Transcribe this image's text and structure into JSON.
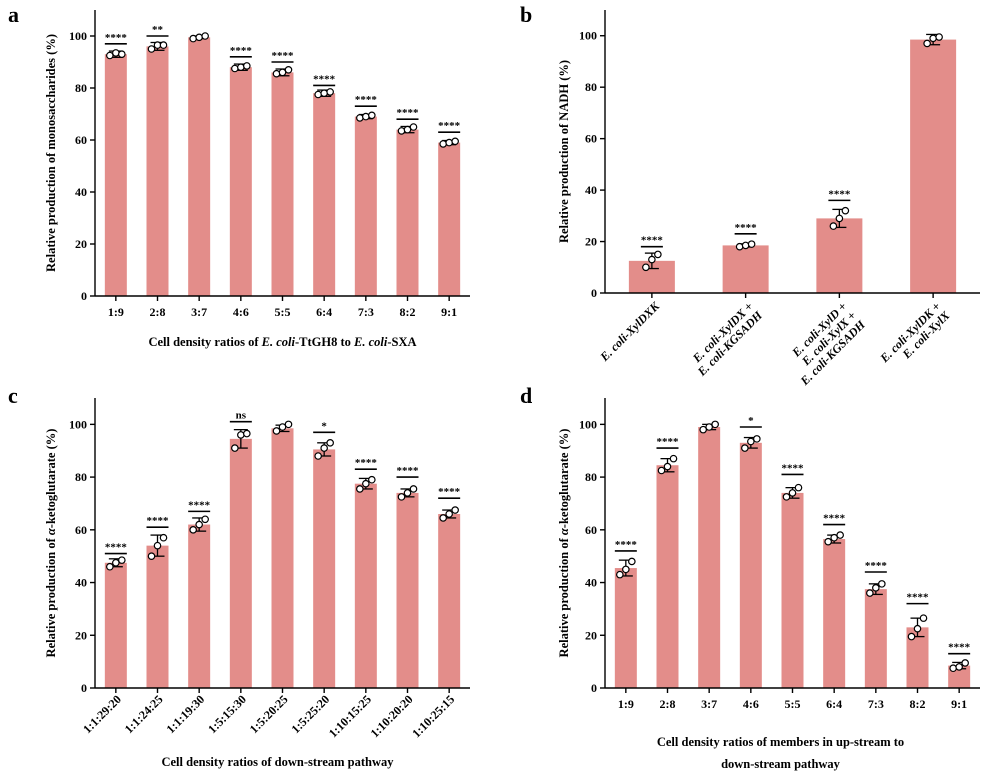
{
  "chart_data": [
    {
      "panel": "a",
      "type": "bar",
      "categories": [
        "1:9",
        "2:8",
        "3:7",
        "4:6",
        "5:5",
        "6:4",
        "7:3",
        "8:2",
        "9:1"
      ],
      "values": [
        93,
        96,
        99.5,
        88,
        86,
        78,
        69,
        64,
        59
      ],
      "errors": [
        1.2,
        1.5,
        0.5,
        1.2,
        1.3,
        1.2,
        0.8,
        1.2,
        0.8
      ],
      "points": [
        [
          92.5,
          93.5,
          93
        ],
        [
          95,
          96.5,
          96.5
        ],
        [
          99,
          99.5,
          100
        ],
        [
          87.5,
          88,
          88.5
        ],
        [
          85.5,
          86,
          87
        ],
        [
          77.5,
          78,
          78.5
        ],
        [
          68.5,
          69,
          69.5
        ],
        [
          63.5,
          64,
          65
        ],
        [
          58.5,
          59,
          59.5
        ]
      ],
      "significance": [
        "****",
        "**",
        "",
        "****",
        "****",
        "****",
        "****",
        "****",
        "****"
      ],
      "sig_levels": [
        97,
        100,
        null,
        92,
        90,
        81,
        73,
        68,
        63
      ],
      "title": "",
      "xlabel_parts": [
        {
          "text": "Cell density ratios of ",
          "italic": false
        },
        {
          "text": "E. coli",
          "italic": true
        },
        {
          "text": "-TtGH8 to ",
          "italic": false
        },
        {
          "text": "E. coli",
          "italic": true
        },
        {
          "text": "-SXA",
          "italic": false
        }
      ],
      "ylabel": "Relative production of monosaccharides (%)",
      "ylim": [
        0,
        110
      ],
      "yticks": [
        0,
        20,
        40,
        60,
        80,
        100
      ]
    },
    {
      "panel": "b",
      "type": "bar",
      "categories": [
        "E. coli-XylDXK",
        "E. coli-XylDX + E. coli-KGSADH",
        "E. coli-XylD + E. coli-XylX + E. coli-KGSADH",
        "E. coli-XylDK + E. coli-XylX"
      ],
      "tick_lines": [
        [
          [
            {
              "text": "E. coli",
              "italic": true
            },
            {
              "text": "-XylDXK",
              "italic": true
            }
          ]
        ],
        [
          [
            {
              "text": "E. coli",
              "italic": true
            },
            {
              "text": "-XylDX +",
              "italic": true
            }
          ],
          [
            {
              "text": "E. coli",
              "italic": true
            },
            {
              "text": "-KGSADH",
              "italic": true
            }
          ]
        ],
        [
          [
            {
              "text": "E. coli",
              "italic": true
            },
            {
              "text": "-XylD +",
              "italic": true
            }
          ],
          [
            {
              "text": "E. coli",
              "italic": true
            },
            {
              "text": "-XylX +",
              "italic": true
            }
          ],
          [
            {
              "text": "E. coli",
              "italic": true
            },
            {
              "text": "-KGSADH",
              "italic": true
            }
          ]
        ],
        [
          [
            {
              "text": "E. coli",
              "italic": true
            },
            {
              "text": "-XylDK +",
              "italic": true
            }
          ],
          [
            {
              "text": "E. coli",
              "italic": true
            },
            {
              "text": "-XylX",
              "italic": true
            }
          ]
        ]
      ],
      "values": [
        12.5,
        18.5,
        29,
        98.5
      ],
      "errors": [
        3,
        0.6,
        3.5,
        2
      ],
      "points": [
        [
          10,
          13,
          15
        ],
        [
          18,
          18.5,
          19
        ],
        [
          26,
          29,
          32
        ],
        [
          97,
          99,
          99.5
        ]
      ],
      "significance": [
        "****",
        "****",
        "****",
        ""
      ],
      "sig_levels": [
        18,
        23,
        36,
        null
      ],
      "title": "",
      "xlabel": "",
      "ylabel": "Relative production of NADH (%)",
      "ylim": [
        0,
        110
      ],
      "yticks": [
        0,
        20,
        40,
        60,
        80,
        100
      ]
    },
    {
      "panel": "c",
      "type": "bar",
      "categories": [
        "1:1:29:20",
        "1:1:24:25",
        "1:1:19:30",
        "1:5:15:30",
        "1:5:20:25",
        "1:5:25:20",
        "1:10:15:25",
        "1:10:20:20",
        "1:10:25:15"
      ],
      "values": [
        47.5,
        54,
        62,
        94.5,
        98.5,
        90.5,
        77.5,
        74,
        66
      ],
      "errors": [
        1.5,
        4,
        2.5,
        3.5,
        1.2,
        2.5,
        2,
        1.5,
        1.5
      ],
      "points": [
        [
          46,
          47.5,
          48.5
        ],
        [
          50,
          54,
          57
        ],
        [
          60,
          62,
          64
        ],
        [
          91,
          96,
          96.5
        ],
        [
          97.5,
          99,
          100
        ],
        [
          88,
          91,
          93
        ],
        [
          75.5,
          77.5,
          79
        ],
        [
          72.5,
          74,
          75.5
        ],
        [
          64.5,
          66,
          67.5
        ]
      ],
      "significance": [
        "****",
        "****",
        "****",
        "ns",
        "",
        "*",
        "****",
        "****",
        "****"
      ],
      "sig_levels": [
        51,
        61,
        67,
        101,
        null,
        97,
        83,
        80,
        72
      ],
      "title": "",
      "xlabel": "Cell density ratios of  down-stream pathway",
      "ylabel_parts": [
        {
          "text": "Relative production of ",
          "italic": false
        },
        {
          "text": "α",
          "italic": true
        },
        {
          "text": "-ketoglutarate (%)",
          "italic": false
        }
      ],
      "ylim": [
        0,
        110
      ],
      "yticks": [
        0,
        20,
        40,
        60,
        80,
        100
      ]
    },
    {
      "panel": "d",
      "type": "bar",
      "categories": [
        "1:9",
        "2:8",
        "3:7",
        "4:6",
        "5:5",
        "6:4",
        "7:3",
        "8:2",
        "9:1"
      ],
      "values": [
        45.5,
        84.5,
        99,
        93,
        74,
        56.5,
        37.5,
        23,
        8.5
      ],
      "errors": [
        3,
        2.5,
        1,
        2,
        2,
        1.5,
        2,
        3.5,
        1.2
      ],
      "points": [
        [
          43,
          45,
          48
        ],
        [
          82.5,
          84,
          87
        ],
        [
          98,
          99,
          100
        ],
        [
          91,
          93.5,
          94.5
        ],
        [
          72.5,
          74,
          76
        ],
        [
          55.5,
          57,
          58
        ],
        [
          36,
          38,
          39.5
        ],
        [
          19.5,
          22.5,
          26.5
        ],
        [
          7.5,
          8,
          9.5
        ]
      ],
      "significance": [
        "****",
        "****",
        "",
        "*",
        "****",
        "****",
        "****",
        "****",
        "****"
      ],
      "sig_levels": [
        52,
        91,
        null,
        99,
        81,
        62,
        44,
        32,
        13
      ],
      "title": "",
      "xlabel_lines": [
        "Cell density ratios of members in  up-stream to",
        "down-stream pathway"
      ],
      "ylabel_parts": [
        {
          "text": "Relative production of ",
          "italic": false
        },
        {
          "text": "α",
          "italic": true
        },
        {
          "text": "-ketoglutarate (%)",
          "italic": false
        }
      ],
      "ylim": [
        0,
        110
      ],
      "yticks": [
        0,
        20,
        40,
        60,
        80,
        100
      ]
    }
  ],
  "colors": {
    "bar": "#e38d8a",
    "axis": "#000000",
    "point_fill": "#ffffff"
  }
}
